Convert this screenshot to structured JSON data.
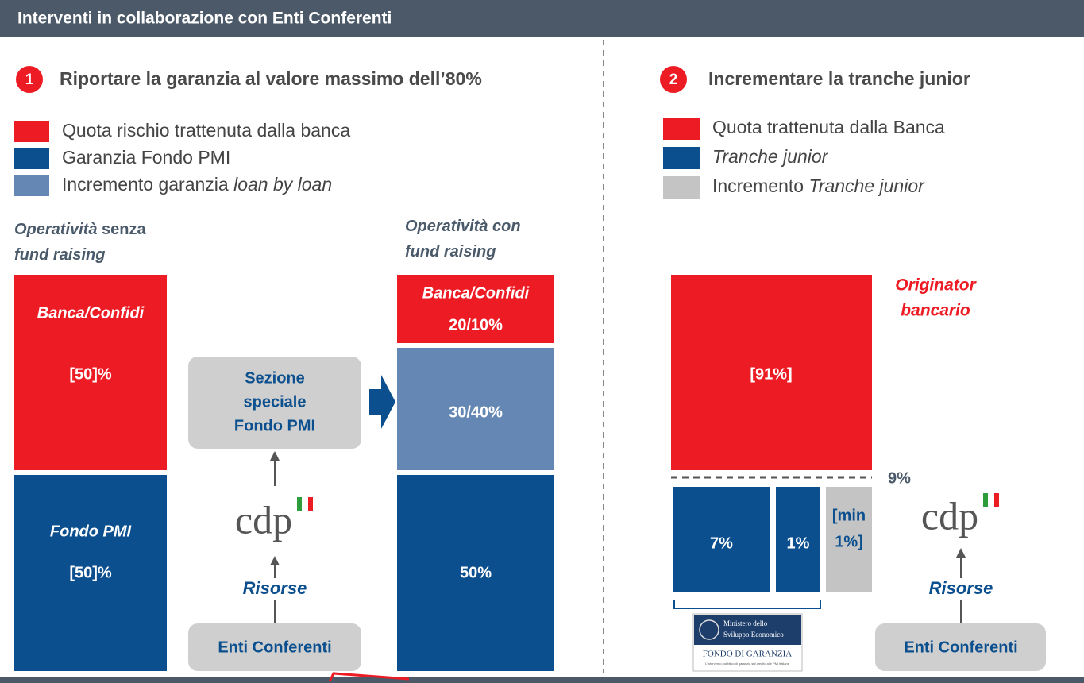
{
  "header": {
    "title": "Interventi in collaborazione con Enti Conferenti"
  },
  "section1": {
    "badge": "1",
    "title": "Riportare la garanzia al valore massimo dell’80%",
    "legend": [
      {
        "color": "#ed1c24",
        "parts": [
          {
            "text": "Quota rischio trattenuta dalla banca"
          }
        ]
      },
      {
        "color": "#0b4f8e",
        "parts": [
          {
            "text": "Garanzia Fondo PMI"
          }
        ]
      },
      {
        "color": "#6587b3",
        "parts": [
          {
            "text": "Incremento garanzia "
          },
          {
            "text": "loan by loan",
            "italic": true
          }
        ]
      }
    ],
    "without": {
      "label": [
        [
          {
            "text": "Operatività",
            "italic": true
          },
          {
            "text": " senza"
          }
        ],
        [
          {
            "text": "fund raising",
            "italic": true
          }
        ]
      ],
      "blocks": [
        {
          "color": "#ed1c24",
          "lines": [
            {
              "text": "Banca/Confidi",
              "italic": true
            },
            {
              "text": "[50]%"
            }
          ]
        },
        {
          "color": "#0b4f8e",
          "lines": [
            {
              "text": "Fondo PMI",
              "italic": true
            },
            {
              "text": "[50]%"
            }
          ]
        }
      ]
    },
    "with": {
      "label": [
        [
          {
            "text": "Operatività con",
            "italic": true
          }
        ],
        [
          {
            "text": "fund raising",
            "italic": true
          }
        ]
      ],
      "blocks": [
        {
          "color": "#ed1c24",
          "lines": [
            {
              "text": "Banca/Confidi",
              "italic": true
            },
            {
              "text": "20/10%"
            }
          ]
        },
        {
          "color": "#6587b3",
          "lines": [
            {
              "text": "30/40%"
            }
          ]
        },
        {
          "color": "#0b4f8e",
          "lines": [
            {
              "text": "50%"
            }
          ]
        }
      ]
    },
    "special": [
      "Sezione",
      "speciale",
      "Fondo PMI"
    ],
    "logo": "cdp",
    "resources": "Risorse",
    "source": "Enti Conferenti"
  },
  "section2": {
    "badge": "2",
    "title": "Incrementare la tranche junior",
    "legend": [
      {
        "color": "#ed1c24",
        "parts": [
          {
            "text": "Quota trattenuta dalla Banca"
          }
        ]
      },
      {
        "color": "#0b4f8e",
        "parts": [
          {
            "text": "Tranche junior",
            "italic": true
          }
        ]
      },
      {
        "color": "#c4c4c4",
        "parts": [
          {
            "text": "Incremento "
          },
          {
            "text": "Tranche junior",
            "italic": true
          }
        ]
      }
    ],
    "originator": [
      "Originator",
      "bancario"
    ],
    "retained": "[91%]",
    "threshold": "9%",
    "tranches": [
      {
        "color": "#0b4f8e",
        "lines": [
          "7%"
        ]
      },
      {
        "color": "#0b4f8e",
        "lines": [
          "1%"
        ]
      },
      {
        "color": "#c4c4c4",
        "lines": [
          "[min",
          "1%]"
        ]
      }
    ],
    "ministry": {
      "name": [
        "Ministero dello",
        "Sviluppo Economico"
      ],
      "fund": "FONDO DI GARANZIA",
      "note": "L’intervento pubblico di garanzia sul credito alle PMI italiane"
    },
    "logo": "cdp",
    "resources": "Risorse",
    "source": "Enti Conferenti"
  }
}
